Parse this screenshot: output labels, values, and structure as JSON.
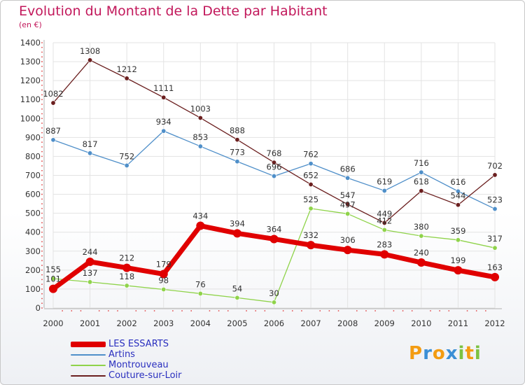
{
  "title": "Evolution du Montant de la Dette par Habitant",
  "unit": "(en €)",
  "logo": {
    "text": "Proxiti",
    "letters": [
      {
        "ch": "P",
        "color": "#f39c12"
      },
      {
        "ch": "r",
        "color": "#3b8fd6"
      },
      {
        "ch": "o",
        "color": "#f39c12"
      },
      {
        "ch": "x",
        "color": "#3b8fd6"
      },
      {
        "ch": "i",
        "color": "#7cc242"
      },
      {
        "ch": "t",
        "color": "#f39c12"
      },
      {
        "ch": "i",
        "color": "#7cc242"
      }
    ]
  },
  "chart_data": {
    "type": "line",
    "title": "Evolution du Montant de la Dette par Habitant",
    "ylabel": "(en €)",
    "ylim": [
      0,
      1400
    ],
    "yticks": [
      0,
      100,
      200,
      300,
      400,
      500,
      600,
      700,
      800,
      900,
      1000,
      1100,
      1200,
      1300,
      1400
    ],
    "grid": true,
    "legend_position": "bottom-left",
    "categories": [
      "2000",
      "2001",
      "2002",
      "2003",
      "2004",
      "2005",
      "2006",
      "2007",
      "2008",
      "2009",
      "2010",
      "2011",
      "2012"
    ],
    "series": [
      {
        "name": "LES ESSARTS",
        "color": "#e00000",
        "values": [
          101,
          244,
          212,
          179,
          434,
          394,
          364,
          332,
          306,
          283,
          240,
          199,
          163
        ],
        "labels": [
          "101",
          "244",
          "212",
          "179",
          "434",
          "394",
          "364",
          "332",
          "306",
          "283",
          "240",
          "199",
          "163"
        ]
      },
      {
        "name": "Artins",
        "color": "#4f8fc9",
        "values": [
          887,
          817,
          752,
          934,
          853,
          773,
          696,
          762,
          686,
          619,
          716,
          616,
          523
        ],
        "labels": [
          "887",
          "817",
          "752",
          "934",
          "853",
          "773",
          "696",
          "762",
          "686",
          "619",
          "716",
          "616",
          "523"
        ]
      },
      {
        "name": "Montrouveau",
        "color": "#8fd34a",
        "values": [
          155,
          137,
          118,
          98,
          76,
          54,
          30,
          525,
          497,
          412,
          380,
          359,
          317
        ],
        "labels": [
          "155",
          "137",
          "118",
          "98",
          "76",
          "54",
          "30",
          "525",
          "497",
          "412",
          "380",
          "359",
          "317"
        ]
      },
      {
        "name": "Couture-sur-Loir",
        "color": "#6b1f1f",
        "values": [
          1082,
          1308,
          1212,
          1111,
          1003,
          888,
          768,
          652,
          547,
          449,
          618,
          544,
          702
        ],
        "labels": [
          "1082",
          "1308",
          "1212",
          "1111",
          "1003",
          "888",
          "768",
          "652",
          "547",
          "449",
          "618",
          "544",
          "702"
        ]
      }
    ]
  }
}
